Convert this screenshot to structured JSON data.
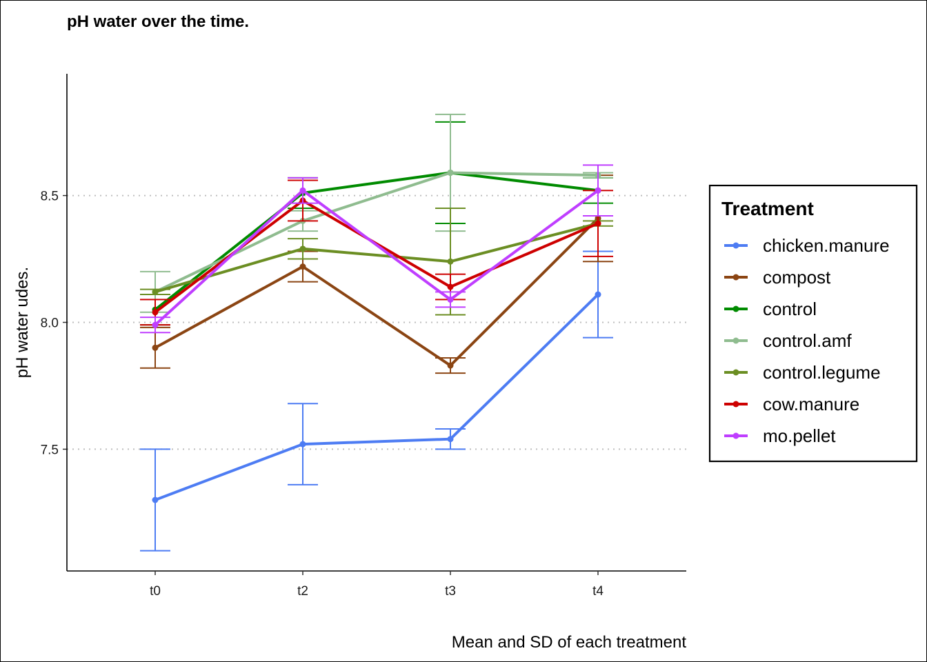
{
  "chart_data": {
    "type": "line",
    "title": "pH water over the time.",
    "caption": "Mean and SD of each treatment",
    "xlabel": "",
    "ylabel": "pH water udes.",
    "categories": [
      "t0",
      "t2",
      "t3",
      "t4"
    ],
    "ylim": [
      7.02,
      8.98
    ],
    "yticks": [
      7.5,
      8.0,
      8.5
    ],
    "ytick_labels": [
      "7.5",
      "8.0",
      "8.5"
    ],
    "grid": "horizontal dotted at major y ticks",
    "legend": {
      "title": "Treatment",
      "placement": "right"
    },
    "series": [
      {
        "name": "chicken.manure",
        "color": "#4D7CF3",
        "values": [
          7.3,
          7.52,
          7.54,
          8.11
        ],
        "sd": [
          0.2,
          0.16,
          0.04,
          0.17
        ]
      },
      {
        "name": "compost",
        "color": "#8B4513",
        "values": [
          7.9,
          8.22,
          7.83,
          8.41
        ],
        "sd": [
          0.08,
          0.06,
          0.03,
          0.17
        ]
      },
      {
        "name": "control",
        "color": "#008B00",
        "values": [
          8.05,
          8.51,
          8.59,
          8.52
        ],
        "sd": [
          0.06,
          0.06,
          0.2,
          0.05
        ]
      },
      {
        "name": "control.amf",
        "color": "#8FBC8F",
        "values": [
          8.12,
          8.4,
          8.59,
          8.58
        ],
        "sd": [
          0.08,
          0.04,
          0.23,
          0.01
        ]
      },
      {
        "name": "control.legume",
        "color": "#6B8E23",
        "values": [
          8.12,
          8.29,
          8.24,
          8.39
        ],
        "sd": [
          0.01,
          0.04,
          0.21,
          0.01
        ]
      },
      {
        "name": "cow.manure",
        "color": "#CD0000",
        "values": [
          8.04,
          8.48,
          8.14,
          8.39
        ],
        "sd": [
          0.05,
          0.08,
          0.05,
          0.13
        ]
      },
      {
        "name": "mo.pellet",
        "color": "#BF3EFF",
        "values": [
          7.99,
          8.52,
          8.09,
          8.52
        ],
        "sd": [
          0.03,
          0.05,
          0.03,
          0.1
        ]
      }
    ]
  }
}
